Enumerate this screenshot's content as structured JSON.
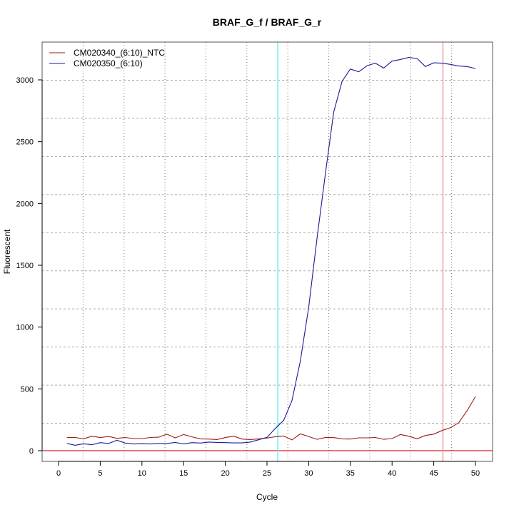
{
  "chart_data": {
    "type": "line",
    "title": "BRAF_G_f / BRAF_G_r",
    "xlabel": "Cycle",
    "ylabel": "Fluorescent",
    "xlim": [
      -2,
      52
    ],
    "ylim": [
      -80,
      3290
    ],
    "x_ticks": [
      0,
      5,
      10,
      15,
      20,
      25,
      30,
      35,
      40,
      45,
      50
    ],
    "y_ticks": [
      0,
      500,
      1000,
      1500,
      2000,
      2500,
      3000
    ],
    "grid": true,
    "legend_position": "top-left",
    "x": [
      1,
      2,
      3,
      4,
      5,
      6,
      7,
      8,
      9,
      10,
      11,
      12,
      13,
      14,
      15,
      16,
      17,
      18,
      19,
      20,
      21,
      22,
      23,
      24,
      25,
      26,
      27,
      28,
      29,
      30,
      31,
      32,
      33,
      34,
      35,
      36,
      37,
      38,
      39,
      40,
      41,
      42,
      43,
      44,
      45,
      46,
      47,
      48,
      49,
      50
    ],
    "series": [
      {
        "name": "CM020340_(6:10)_NTC",
        "color": "#a01818",
        "values": [
          106,
          107,
          96,
          117,
          106,
          115,
          100,
          107,
          98,
          98,
          107,
          109,
          133,
          104,
          131,
          112,
          96,
          94,
          90,
          106,
          117,
          94,
          90,
          96,
          102,
          113,
          119,
          87,
          136,
          115,
          92,
          106,
          106,
          96,
          94,
          104,
          104,
          107,
          92,
          98,
          131,
          117,
          96,
          123,
          134,
          163,
          186,
          227,
          323,
          438
        ]
      },
      {
        "name": "CM020350_(6:10)",
        "color": "#1a1a9a",
        "values": [
          59,
          44,
          56,
          48,
          65,
          58,
          85,
          62,
          54,
          56,
          54,
          58,
          58,
          67,
          54,
          65,
          62,
          70,
          67,
          65,
          63,
          63,
          70,
          88,
          108,
          180,
          246,
          406,
          725,
          1160,
          1720,
          2240,
          2738,
          2988,
          3088,
          3065,
          3115,
          3135,
          3096,
          3152,
          3165,
          3181,
          3173,
          3108,
          3138,
          3135,
          3125,
          3112,
          3108,
          3092
        ]
      }
    ],
    "reference_lines": {
      "horizontal_zero": {
        "value": 0,
        "color": "#dd2222"
      },
      "vertical_cyan": {
        "value": 26.3,
        "color": "#66f0f0"
      },
      "vertical_red": {
        "value": 46.1,
        "color": "#f0a0a0"
      }
    }
  }
}
